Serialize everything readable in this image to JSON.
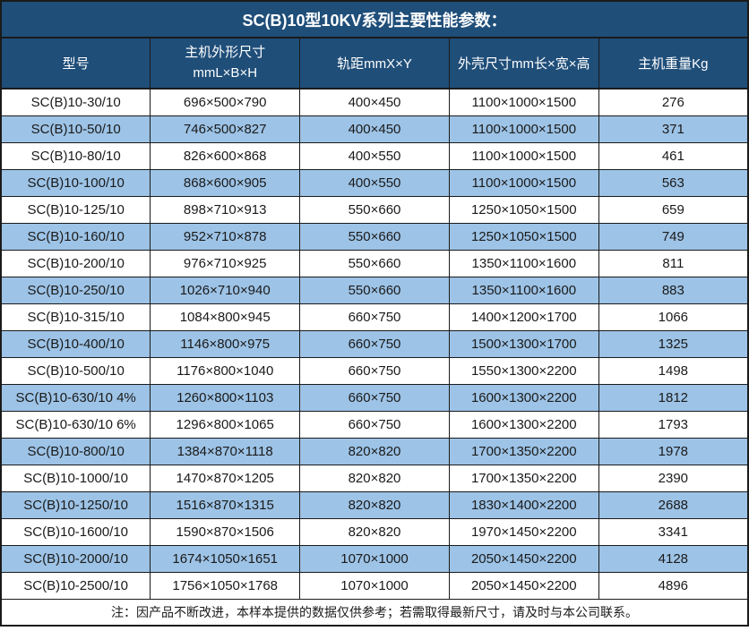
{
  "title": "SC(B)10型10KV系列主要性能参数：",
  "colors": {
    "header_bg": "#1F4E79",
    "alt_row_bg": "#9DC3E6",
    "border": "#1A1A1A",
    "header_text": "#FFFFFF",
    "body_text": "#1A1A1A"
  },
  "table": {
    "headers": [
      {
        "label": "型号"
      },
      {
        "label_line1": "主机外形尺寸",
        "label_line2": "mmL×B×H"
      },
      {
        "label": "轨距mmX×Y"
      },
      {
        "label": "外壳尺寸mm长×宽×高"
      },
      {
        "label": "主机重量Kg"
      }
    ],
    "rows": [
      [
        "SC(B)10-30/10",
        "696×500×790",
        "400×450",
        "1100×1000×1500",
        276
      ],
      [
        "SC(B)10-50/10",
        "746×500×827",
        "400×450",
        "1100×1000×1500",
        371
      ],
      [
        "SC(B)10-80/10",
        "826×600×868",
        "400×550",
        "1100×1000×1500",
        461
      ],
      [
        "SC(B)10-100/10",
        "868×600×905",
        "400×550",
        "1100×1000×1500",
        563
      ],
      [
        "SC(B)10-125/10",
        "898×710×913",
        "550×660",
        "1250×1050×1500",
        659
      ],
      [
        "SC(B)10-160/10",
        "952×710×878",
        "550×660",
        "1250×1050×1500",
        749
      ],
      [
        "SC(B)10-200/10",
        "976×710×925",
        "550×660",
        "1350×1100×1600",
        811
      ],
      [
        "SC(B)10-250/10",
        "1026×710×940",
        "550×660",
        "1350×1100×1600",
        883
      ],
      [
        "SC(B)10-315/10",
        "1084×800×945",
        "660×750",
        "1400×1200×1700",
        1066
      ],
      [
        "SC(B)10-400/10",
        "1146×800×975",
        "660×750",
        "1500×1300×1700",
        1325
      ],
      [
        "SC(B)10-500/10",
        "1176×800×1040",
        "660×750",
        "1550×1300×2200",
        1498
      ],
      [
        "SC(B)10-630/10 4%",
        "1260×800×1103",
        "660×750",
        "1600×1300×2200",
        1812
      ],
      [
        "SC(B)10-630/10 6%",
        "1296×800×1065",
        "660×750",
        "1600×1300×2200",
        1793
      ],
      [
        "SC(B)10-800/10",
        "1384×870×1118",
        "820×820",
        "1700×1350×2200",
        1978
      ],
      [
        "SC(B)10-1000/10",
        "1470×870×1205",
        "820×820",
        "1700×1350×2200",
        2390
      ],
      [
        "SC(B)10-1250/10",
        "1516×870×1315",
        "820×820",
        "1830×1400×2200",
        2688
      ],
      [
        "SC(B)10-1600/10",
        "1590×870×1506",
        "820×820",
        "1970×1450×2200",
        3341
      ],
      [
        "SC(B)10-2000/10",
        "1674×1050×1651",
        "1070×1000",
        "2050×1450×2200",
        4128
      ],
      [
        "SC(B)10-2500/10",
        "1756×1050×1768",
        "1070×1000",
        "2050×1450×2200",
        4896
      ]
    ]
  },
  "note": "注：因产品不断改进，本样本提供的数据仅供参考；若需取得最新尺寸，请及时与本公司联系。"
}
